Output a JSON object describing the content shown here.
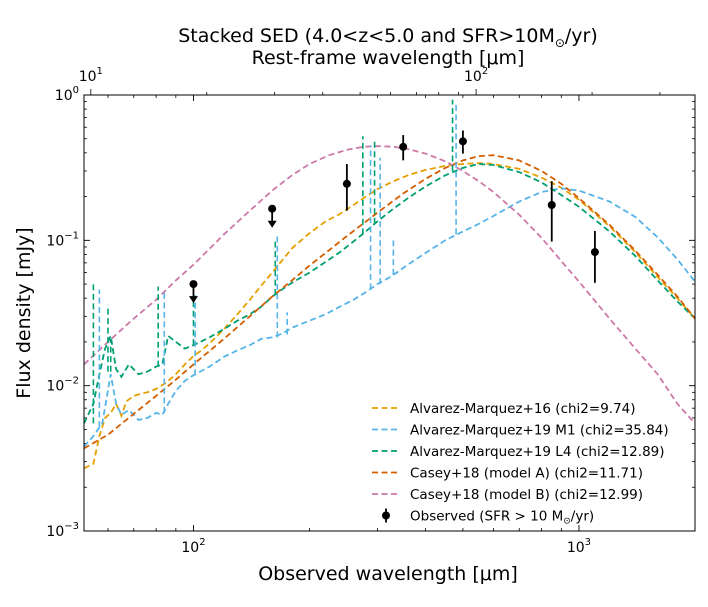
{
  "chart_data": {
    "type": "line",
    "title": "Stacked SED (4.0<z<5.0 and SFR>10M",
    "title_sub": "⊙",
    "title_end": "/yr)",
    "top_axis_label": "Rest-frame wavelength [μm]",
    "xlabel": "Observed wavelength [μm]",
    "ylabel": "Flux density [mJy]",
    "x_scale": "log",
    "y_scale": "log",
    "xlim": [
      52,
      2000
    ],
    "ylim": [
      0.001,
      1.0
    ],
    "top_xlim": [
      9.6,
      370
    ],
    "redshift_factor": 5.4,
    "x_ticks": [
      {
        "value": 100,
        "base": "10",
        "exp": "2"
      },
      {
        "value": 1000,
        "base": "10",
        "exp": "3"
      }
    ],
    "y_ticks": [
      {
        "value": 0.001,
        "base": "10",
        "exp": "−3"
      },
      {
        "value": 0.01,
        "base": "10",
        "exp": "−2"
      },
      {
        "value": 0.1,
        "base": "10",
        "exp": "−1"
      },
      {
        "value": 1.0,
        "base": "10",
        "exp": "0"
      }
    ],
    "top_ticks": [
      {
        "value": 10,
        "base": "10",
        "exp": "1"
      },
      {
        "value": 100,
        "base": "10",
        "exp": "2"
      }
    ],
    "legend_position": "lower-right",
    "series": [
      {
        "name": "Alvarez-Marquez+16 (chi2=9.74)",
        "color": "#e69f00",
        "points": [
          [
            52,
            0.0027
          ],
          [
            55,
            0.0029
          ],
          [
            57,
            0.0045
          ],
          [
            59,
            0.006
          ],
          [
            61,
            0.0065
          ],
          [
            63,
            0.0075
          ],
          [
            65,
            0.0062
          ],
          [
            67,
            0.0078
          ],
          [
            70,
            0.0085
          ],
          [
            73,
            0.0088
          ],
          [
            76,
            0.009
          ],
          [
            80,
            0.0095
          ],
          [
            85,
            0.0105
          ],
          [
            90,
            0.012
          ],
          [
            95,
            0.014
          ],
          [
            100,
            0.016
          ],
          [
            105,
            0.0175
          ],
          [
            110,
            0.0195
          ],
          [
            120,
            0.0245
          ],
          [
            130,
            0.031
          ],
          [
            140,
            0.039
          ],
          [
            150,
            0.049
          ],
          [
            160,
            0.06
          ],
          [
            170,
            0.073
          ],
          [
            180,
            0.088
          ],
          [
            200,
            0.112
          ],
          [
            220,
            0.135
          ],
          [
            240,
            0.152
          ],
          [
            260,
            0.175
          ],
          [
            280,
            0.2
          ],
          [
            300,
            0.225
          ],
          [
            330,
            0.255
          ],
          [
            360,
            0.28
          ],
          [
            400,
            0.305
          ],
          [
            450,
            0.325
          ],
          [
            500,
            0.335
          ],
          [
            550,
            0.34
          ],
          [
            600,
            0.335
          ],
          [
            700,
            0.31
          ],
          [
            800,
            0.27
          ],
          [
            900,
            0.23
          ],
          [
            1000,
            0.19
          ],
          [
            1200,
            0.125
          ],
          [
            1400,
            0.083
          ],
          [
            1600,
            0.056
          ],
          [
            1800,
            0.04
          ],
          [
            2000,
            0.029
          ]
        ]
      },
      {
        "name": "Alvarez-Marquez+19 M1 (chi2=35.84)",
        "color": "#56b4e9",
        "points": [
          [
            52,
            0.0038
          ],
          [
            55,
            0.0045
          ],
          [
            58,
            0.0055
          ],
          [
            61,
            0.012
          ],
          [
            63,
            0.0075
          ],
          [
            65,
            0.0063
          ],
          [
            68,
            0.0068
          ],
          [
            72,
            0.0058
          ],
          [
            76,
            0.006
          ],
          [
            80,
            0.0065
          ],
          [
            83,
            0.0063
          ],
          [
            86,
            0.0075
          ],
          [
            90,
            0.0092
          ],
          [
            95,
            0.0108
          ],
          [
            100,
            0.0118
          ],
          [
            110,
            0.0135
          ],
          [
            120,
            0.0158
          ],
          [
            130,
            0.0175
          ],
          [
            140,
            0.019
          ],
          [
            150,
            0.021
          ],
          [
            160,
            0.0215
          ],
          [
            170,
            0.0228
          ],
          [
            180,
            0.025
          ],
          [
            200,
            0.028
          ],
          [
            220,
            0.031
          ],
          [
            240,
            0.035
          ],
          [
            260,
            0.039
          ],
          [
            280,
            0.044
          ],
          [
            300,
            0.05
          ],
          [
            320,
            0.055
          ],
          [
            340,
            0.061
          ],
          [
            360,
            0.068
          ],
          [
            400,
            0.082
          ],
          [
            450,
            0.1
          ],
          [
            500,
            0.115
          ],
          [
            550,
            0.13
          ],
          [
            600,
            0.147
          ],
          [
            700,
            0.185
          ],
          [
            800,
            0.215
          ],
          [
            900,
            0.228
          ],
          [
            1000,
            0.22
          ],
          [
            1200,
            0.185
          ],
          [
            1400,
            0.145
          ],
          [
            1600,
            0.105
          ],
          [
            1800,
            0.074
          ],
          [
            2000,
            0.052
          ]
        ]
      },
      {
        "name": "Alvarez-Marquez+19 L4 (chi2=12.89)",
        "color": "#009e73",
        "points": [
          [
            52,
            0.0055
          ],
          [
            55,
            0.0075
          ],
          [
            57,
            0.012
          ],
          [
            59,
            0.018
          ],
          [
            61,
            0.022
          ],
          [
            63,
            0.013
          ],
          [
            65,
            0.0115
          ],
          [
            68,
            0.014
          ],
          [
            72,
            0.012
          ],
          [
            76,
            0.0125
          ],
          [
            80,
            0.0135
          ],
          [
            83,
            0.014
          ],
          [
            86,
            0.022
          ],
          [
            90,
            0.02
          ],
          [
            95,
            0.018
          ],
          [
            100,
            0.019
          ],
          [
            110,
            0.0215
          ],
          [
            120,
            0.0245
          ],
          [
            130,
            0.028
          ],
          [
            140,
            0.031
          ],
          [
            150,
            0.035
          ],
          [
            160,
            0.041
          ],
          [
            170,
            0.046
          ],
          [
            180,
            0.051
          ],
          [
            200,
            0.06
          ],
          [
            220,
            0.071
          ],
          [
            240,
            0.083
          ],
          [
            260,
            0.098
          ],
          [
            280,
            0.115
          ],
          [
            300,
            0.135
          ],
          [
            330,
            0.165
          ],
          [
            360,
            0.195
          ],
          [
            400,
            0.235
          ],
          [
            450,
            0.28
          ],
          [
            500,
            0.315
          ],
          [
            550,
            0.335
          ],
          [
            600,
            0.33
          ],
          [
            700,
            0.295
          ],
          [
            800,
            0.25
          ],
          [
            900,
            0.205
          ],
          [
            1000,
            0.17
          ],
          [
            1200,
            0.115
          ],
          [
            1400,
            0.078
          ],
          [
            1600,
            0.053
          ],
          [
            1800,
            0.038
          ],
          [
            2000,
            0.029
          ]
        ]
      },
      {
        "name": "Casey+18 (model A) (chi2=11.71)",
        "color": "#d55e00",
        "points": [
          [
            52,
            0.0037
          ],
          [
            60,
            0.0046
          ],
          [
            70,
            0.0064
          ],
          [
            80,
            0.0085
          ],
          [
            90,
            0.011
          ],
          [
            100,
            0.014
          ],
          [
            120,
            0.021
          ],
          [
            140,
            0.03
          ],
          [
            160,
            0.041
          ],
          [
            180,
            0.053
          ],
          [
            200,
            0.067
          ],
          [
            250,
            0.107
          ],
          [
            300,
            0.155
          ],
          [
            350,
            0.21
          ],
          [
            400,
            0.265
          ],
          [
            450,
            0.315
          ],
          [
            500,
            0.355
          ],
          [
            550,
            0.38
          ],
          [
            600,
            0.385
          ],
          [
            700,
            0.355
          ],
          [
            800,
            0.3
          ],
          [
            900,
            0.245
          ],
          [
            1000,
            0.195
          ],
          [
            1200,
            0.128
          ],
          [
            1400,
            0.085
          ],
          [
            1600,
            0.058
          ],
          [
            1800,
            0.041
          ],
          [
            2000,
            0.029
          ]
        ]
      },
      {
        "name": "Casey+18 (model B) (chi2=12.99)",
        "color": "#cc79a7",
        "points": [
          [
            52,
            0.014
          ],
          [
            60,
            0.02
          ],
          [
            70,
            0.029
          ],
          [
            80,
            0.039
          ],
          [
            90,
            0.053
          ],
          [
            100,
            0.068
          ],
          [
            120,
            0.11
          ],
          [
            140,
            0.16
          ],
          [
            160,
            0.22
          ],
          [
            180,
            0.28
          ],
          [
            200,
            0.335
          ],
          [
            225,
            0.385
          ],
          [
            250,
            0.42
          ],
          [
            275,
            0.44
          ],
          [
            300,
            0.445
          ],
          [
            330,
            0.44
          ],
          [
            360,
            0.425
          ],
          [
            400,
            0.395
          ],
          [
            450,
            0.35
          ],
          [
            500,
            0.3
          ],
          [
            550,
            0.255
          ],
          [
            600,
            0.215
          ],
          [
            700,
            0.15
          ],
          [
            800,
            0.104
          ],
          [
            900,
            0.072
          ],
          [
            1000,
            0.052
          ],
          [
            1200,
            0.029
          ],
          [
            1400,
            0.018
          ],
          [
            1600,
            0.012
          ],
          [
            1800,
            0.0075
          ],
          [
            2000,
            0.0055
          ]
        ]
      }
    ],
    "spikes": [
      {
        "color": "#009e73",
        "lines": [
          [
            55,
            0.0055,
            0.052
          ],
          [
            60,
            0.0125,
            0.036
          ],
          [
            61,
            0.0125,
            0.021
          ],
          [
            81,
            0.0135,
            0.048
          ],
          [
            100,
            0.019,
            0.04
          ],
          [
            163,
            0.042,
            0.1
          ],
          [
            275,
            0.11,
            0.52
          ],
          [
            295,
            0.13,
            0.5
          ],
          [
            470,
            0.3,
            0.93
          ]
        ]
      },
      {
        "color": "#56b4e9",
        "lines": [
          [
            57,
            0.0052,
            0.046
          ],
          [
            84,
            0.0065,
            0.046
          ],
          [
            101,
            0.0118,
            0.042
          ],
          [
            165,
            0.0215,
            0.11
          ],
          [
            175,
            0.0225,
            0.032
          ],
          [
            288,
            0.046,
            0.45
          ],
          [
            305,
            0.05,
            0.37
          ],
          [
            330,
            0.058,
            0.1
          ],
          [
            480,
            0.11,
            0.88
          ]
        ]
      }
    ],
    "observed": {
      "label": "Observed (SFR > 10 M",
      "label_sub": "⊙",
      "label_end": "/yr)",
      "color": "#000000",
      "points": [
        {
          "x": 100,
          "y": 0.05,
          "upper_limit": true
        },
        {
          "x": 160,
          "y": 0.165,
          "upper_limit": true
        },
        {
          "x": 250,
          "y": 0.245,
          "err_lo": 0.085,
          "err_hi": 0.09
        },
        {
          "x": 350,
          "y": 0.44,
          "err_lo": 0.085,
          "err_hi": 0.09
        },
        {
          "x": 500,
          "y": 0.48,
          "err_lo": 0.085,
          "err_hi": 0.09
        },
        {
          "x": 850,
          "y": 0.175,
          "err_lo": 0.077,
          "err_hi": 0.08
        },
        {
          "x": 1100,
          "y": 0.083,
          "err_lo": 0.032,
          "err_hi": 0.033
        }
      ]
    }
  }
}
